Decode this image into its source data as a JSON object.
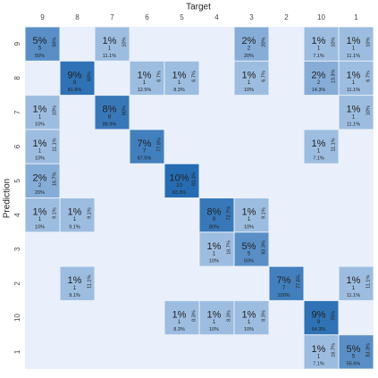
{
  "chart_data": {
    "type": "heatmap",
    "title": "Target",
    "y_label": "Prediction",
    "x_categories": [
      "9",
      "8",
      "7",
      "6",
      "5",
      "4",
      "3",
      "2",
      "10",
      "1"
    ],
    "y_categories": [
      "9",
      "8",
      "7",
      "6",
      "5",
      "4",
      "3",
      "2",
      "10",
      "1"
    ],
    "cells": [
      {
        "x": "9",
        "y": "9",
        "percent": 5,
        "label": "5%",
        "count": 5,
        "col_pct": "50%",
        "row_pct": "50%"
      },
      {
        "x": "7",
        "y": "9",
        "percent": 1,
        "label": "1%",
        "count": 1,
        "col_pct": "11.1%",
        "row_pct": "10%"
      },
      {
        "x": "3",
        "y": "9",
        "percent": 2,
        "label": "2%",
        "count": 2,
        "col_pct": "20%",
        "row_pct": "20%"
      },
      {
        "x": "10",
        "y": "9",
        "percent": 1,
        "label": "1%",
        "count": 1,
        "col_pct": "7.1%",
        "row_pct": "10%"
      },
      {
        "x": "1",
        "y": "9",
        "percent": 1,
        "label": "1%",
        "count": 1,
        "col_pct": "11.1%",
        "row_pct": "10%"
      },
      {
        "x": "8",
        "y": "8",
        "percent": 9,
        "label": "9%",
        "count": 9,
        "col_pct": "81.8%",
        "row_pct": "60%"
      },
      {
        "x": "6",
        "y": "8",
        "percent": 1,
        "label": "1%",
        "count": 1,
        "col_pct": "12.5%",
        "row_pct": "6.7%"
      },
      {
        "x": "5",
        "y": "8",
        "percent": 1,
        "label": "1%",
        "count": 1,
        "col_pct": "8.3%",
        "row_pct": "6.7%"
      },
      {
        "x": "3",
        "y": "8",
        "percent": 1,
        "label": "1%",
        "count": 1,
        "col_pct": "10%",
        "row_pct": "6.7%"
      },
      {
        "x": "10",
        "y": "8",
        "percent": 2,
        "label": "2%",
        "count": 2,
        "col_pct": "14.3%",
        "row_pct": "13.3%"
      },
      {
        "x": "1",
        "y": "8",
        "percent": 1,
        "label": "1%",
        "count": 1,
        "col_pct": "11.1%",
        "row_pct": "6.7%"
      },
      {
        "x": "9",
        "y": "7",
        "percent": 1,
        "label": "1%",
        "count": 1,
        "col_pct": "10%",
        "row_pct": "10%"
      },
      {
        "x": "7",
        "y": "7",
        "percent": 8,
        "label": "8%",
        "count": 8,
        "col_pct": "88.9%",
        "row_pct": "80%"
      },
      {
        "x": "1",
        "y": "7",
        "percent": 1,
        "label": "1%",
        "count": 1,
        "col_pct": "11.1%",
        "row_pct": "10%"
      },
      {
        "x": "9",
        "y": "6",
        "percent": 1,
        "label": "1%",
        "count": 1,
        "col_pct": "10%",
        "row_pct": "11.1%"
      },
      {
        "x": "6",
        "y": "6",
        "percent": 7,
        "label": "7%",
        "count": 7,
        "col_pct": "87.5%",
        "row_pct": "77.8%"
      },
      {
        "x": "10",
        "y": "6",
        "percent": 1,
        "label": "1%",
        "count": 1,
        "col_pct": "7.1%",
        "row_pct": "11.1%"
      },
      {
        "x": "9",
        "y": "5",
        "percent": 2,
        "label": "2%",
        "count": 2,
        "col_pct": "20%",
        "row_pct": "16.7%"
      },
      {
        "x": "5",
        "y": "5",
        "percent": 10,
        "label": "10%",
        "count": 10,
        "col_pct": "83.3%",
        "row_pct": "83.3%"
      },
      {
        "x": "9",
        "y": "4",
        "percent": 1,
        "label": "1%",
        "count": 1,
        "col_pct": "10%",
        "row_pct": "9.1%"
      },
      {
        "x": "8",
        "y": "4",
        "percent": 1,
        "label": "1%",
        "count": 1,
        "col_pct": "9.1%",
        "row_pct": "9.1%"
      },
      {
        "x": "4",
        "y": "4",
        "percent": 8,
        "label": "8%",
        "count": 8,
        "col_pct": "80%",
        "row_pct": "72.7%"
      },
      {
        "x": "3",
        "y": "4",
        "percent": 1,
        "label": "1%",
        "count": 1,
        "col_pct": "10%",
        "row_pct": "9.1%"
      },
      {
        "x": "4",
        "y": "3",
        "percent": 1,
        "label": "1%",
        "count": 1,
        "col_pct": "10%",
        "row_pct": "16.7%"
      },
      {
        "x": "3",
        "y": "3",
        "percent": 5,
        "label": "5%",
        "count": 5,
        "col_pct": "50%",
        "row_pct": "83.3%"
      },
      {
        "x": "8",
        "y": "2",
        "percent": 1,
        "label": "1%",
        "count": 1,
        "col_pct": "9.1%",
        "row_pct": "11.1%"
      },
      {
        "x": "2",
        "y": "2",
        "percent": 7,
        "label": "7%",
        "count": 7,
        "col_pct": "100%",
        "row_pct": "77.8%"
      },
      {
        "x": "1",
        "y": "2",
        "percent": 1,
        "label": "1%",
        "count": 1,
        "col_pct": "11.1%",
        "row_pct": "11.1%"
      },
      {
        "x": "5",
        "y": "10",
        "percent": 1,
        "label": "1%",
        "count": 1,
        "col_pct": "8.3%",
        "row_pct": "8.3%"
      },
      {
        "x": "4",
        "y": "10",
        "percent": 1,
        "label": "1%",
        "count": 1,
        "col_pct": "10%",
        "row_pct": "8.3%"
      },
      {
        "x": "3",
        "y": "10",
        "percent": 1,
        "label": "1%",
        "count": 1,
        "col_pct": "10%",
        "row_pct": "8.3%"
      },
      {
        "x": "10",
        "y": "10",
        "percent": 9,
        "label": "9%",
        "count": 9,
        "col_pct": "64.3%",
        "row_pct": "75%"
      },
      {
        "x": "10",
        "y": "1",
        "percent": 1,
        "label": "1%",
        "count": 1,
        "col_pct": "7.1%",
        "row_pct": "16.7%"
      },
      {
        "x": "1",
        "y": "1",
        "percent": 5,
        "label": "5%",
        "count": 5,
        "col_pct": "55.6%",
        "row_pct": "83.3%"
      }
    ]
  }
}
